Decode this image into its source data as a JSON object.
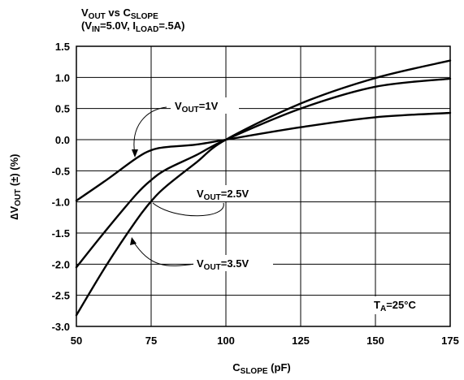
{
  "chart_data": {
    "type": "line",
    "title": {
      "line1": {
        "a": "V",
        "a_sub": "OUT",
        "b": " vs C",
        "b_sub": "SLOPE"
      },
      "line2": {
        "a": "(V",
        "a_sub": "IN",
        "b": "=5.0V, I",
        "b_sub": "LOAD",
        "c": "=.5A)"
      }
    },
    "xlabel": {
      "main": "C",
      "sub": "SLOPE",
      "rest": " (pF)"
    },
    "ylabel": {
      "main": "∆V",
      "sub": "OUT",
      "rest": " (±) (%)"
    },
    "xlim": [
      50,
      175
    ],
    "ylim": [
      -3.0,
      1.5
    ],
    "x_ticks": [
      50,
      75,
      100,
      125,
      150,
      175
    ],
    "x_tick_labels": [
      "50",
      "75",
      "100",
      "125",
      "150",
      "175"
    ],
    "y_ticks": [
      -3.0,
      -2.5,
      -2.0,
      -1.5,
      -1.0,
      -0.5,
      0.0,
      0.5,
      1.0,
      1.5
    ],
    "y_tick_labels": [
      "-3.0",
      "-2.5",
      "-2.0",
      "-1.5",
      "-1.0",
      "-0.5",
      "0.0",
      "0.5",
      "1.0",
      "1.5"
    ],
    "grid": true,
    "series": [
      {
        "name": "V_OUT=1V",
        "label": {
          "a": "V",
          "a_sub": "OUT",
          "b": "=1V"
        },
        "x": [
          50,
          60,
          70,
          75,
          80,
          90,
          100,
          125,
          150,
          175
        ],
        "y": [
          -0.98,
          -0.65,
          -0.3,
          -0.17,
          -0.12,
          -0.08,
          0.0,
          0.2,
          0.36,
          0.43
        ]
      },
      {
        "name": "V_OUT=2.5V",
        "label": {
          "a": "V",
          "a_sub": "OUT",
          "b": "=2.5V"
        },
        "x": [
          50,
          60,
          70,
          75,
          80,
          90,
          100,
          125,
          150,
          175
        ],
        "y": [
          -2.05,
          -1.45,
          -0.88,
          -0.65,
          -0.48,
          -0.25,
          0.0,
          0.5,
          0.85,
          0.98
        ]
      },
      {
        "name": "V_OUT=3.5V",
        "label": {
          "a": "V",
          "a_sub": "OUT",
          "b": "=3.5V"
        },
        "x": [
          50,
          60,
          70,
          75,
          80,
          90,
          100,
          125,
          150,
          175
        ],
        "y": [
          -2.82,
          -2.02,
          -1.3,
          -0.99,
          -0.75,
          -0.37,
          0.0,
          0.58,
          0.99,
          1.27
        ]
      }
    ],
    "annotation": {
      "a": "T",
      "a_sub": "A",
      "b": "=25°C"
    }
  }
}
